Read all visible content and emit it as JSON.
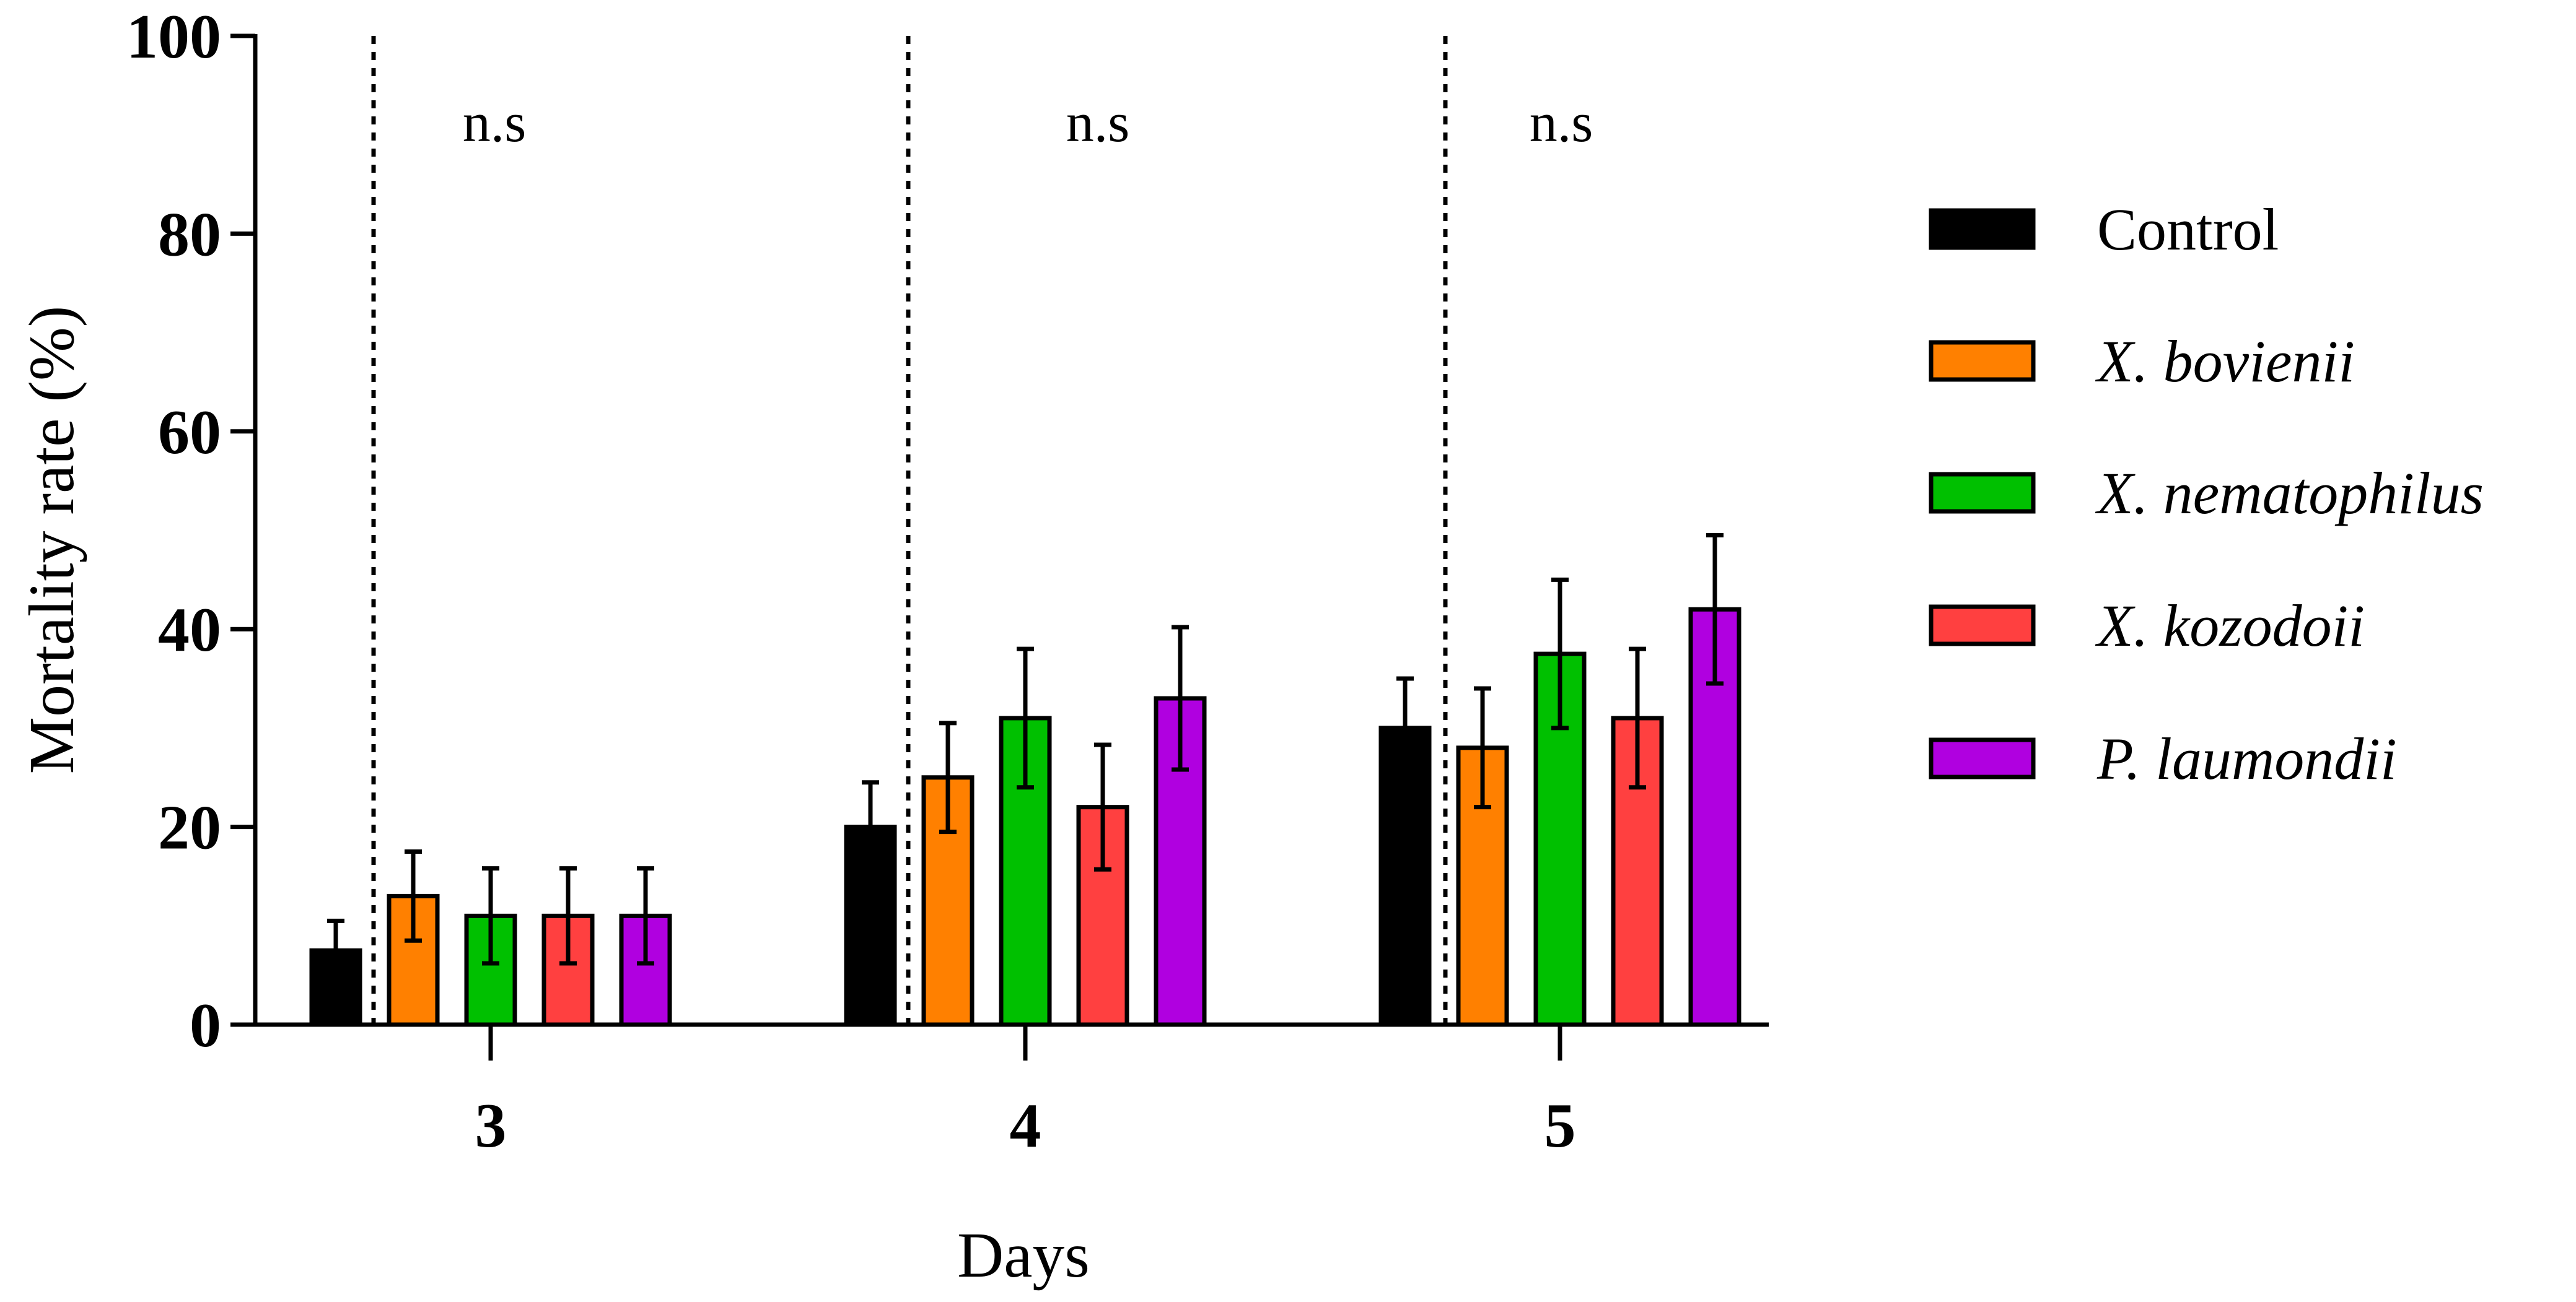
{
  "chart_data": {
    "type": "bar",
    "title": "",
    "xlabel": "Days",
    "ylabel": "Mortality rate (%)",
    "ylim": [
      0,
      100
    ],
    "yticks": [
      "0",
      "20",
      "40",
      "60",
      "80",
      "100"
    ],
    "categories": [
      "3",
      "4",
      "5"
    ],
    "series": [
      {
        "name": "Control",
        "italic": false,
        "color": "#000000",
        "values": [
          7.5,
          20,
          30
        ],
        "errors": [
          3,
          4.5,
          5
        ]
      },
      {
        "name": "X. bovienii",
        "italic": true,
        "color": "#FF8000",
        "values": [
          13,
          25,
          28
        ],
        "errors": [
          4.5,
          5.5,
          6
        ]
      },
      {
        "name": "X. nematophilus",
        "italic": true,
        "color": "#00C000",
        "values": [
          11,
          31,
          37.5
        ],
        "errors": [
          4.8,
          7,
          7.5
        ]
      },
      {
        "name": "X. kozodoii",
        "italic": true,
        "color": "#FF4040",
        "values": [
          11,
          22,
          31
        ],
        "errors": [
          4.8,
          6.3,
          7
        ]
      },
      {
        "name": "P. laumondii",
        "italic": true,
        "color": "#B000E0",
        "values": [
          11,
          33,
          42
        ],
        "errors": [
          4.8,
          7.2,
          7.5
        ]
      }
    ],
    "annotations": [
      "n.s",
      "n.s",
      "n.s"
    ],
    "legend": "right",
    "grid": false
  }
}
